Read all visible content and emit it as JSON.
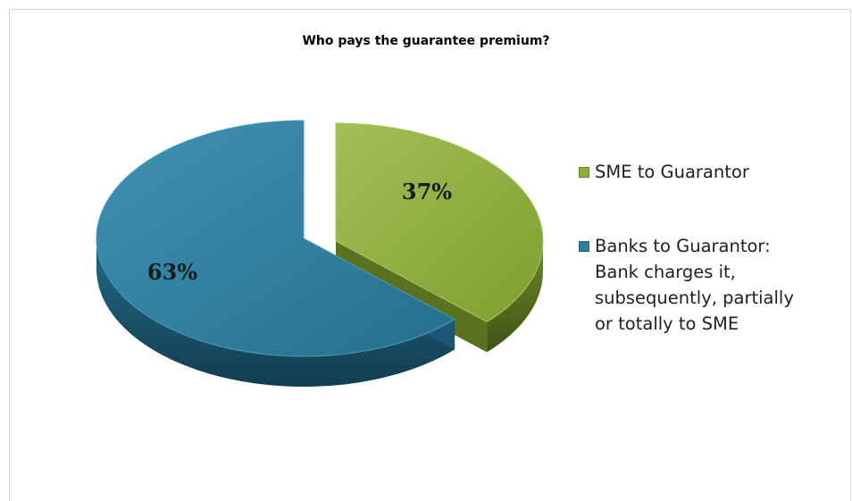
{
  "chart_data": {
    "type": "pie",
    "title": "Who pays the guarantee premium?",
    "slices": [
      {
        "label": "SME to Guarantor",
        "value": 37,
        "display": "37%",
        "color": "#8faf3c",
        "dark": "#5a7220",
        "light": "#a9c45e"
      },
      {
        "label": "Banks to Guarantor: Bank charges it, subsequently, partially or totally to SME",
        "value": 63,
        "display": "63%",
        "color": "#2d7f9e",
        "dark": "#1c5873",
        "light": "#4a9bb8"
      }
    ],
    "legend_position": "right",
    "three_d": true,
    "exploded": true
  },
  "legend": {
    "item0": "SME to Guarantor",
    "item1_lines": [
      "Banks to Guarantor:",
      "Bank charges it,",
      "subsequently, partially",
      "or totally to SME"
    ]
  }
}
